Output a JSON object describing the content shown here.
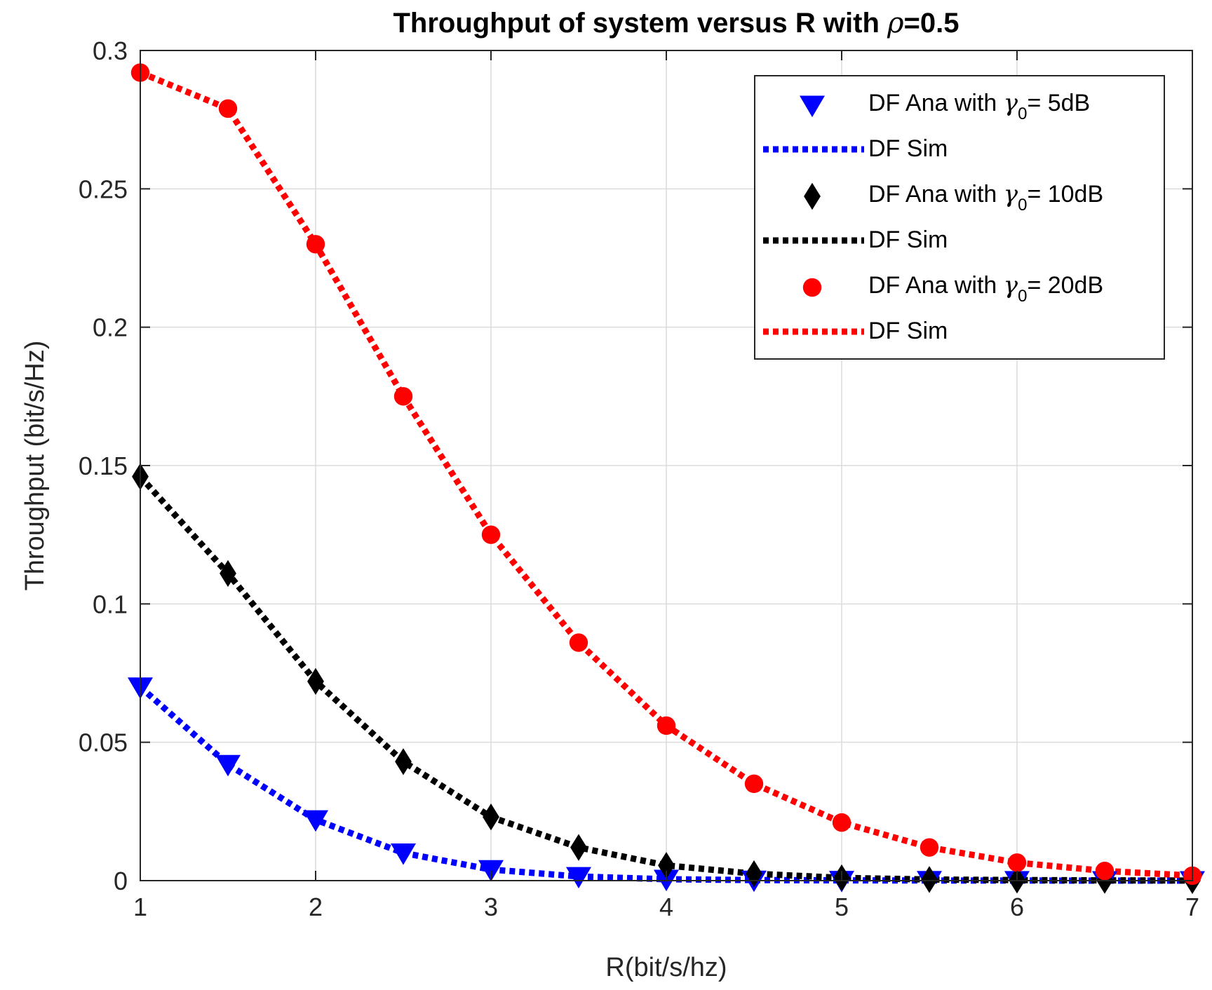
{
  "chart_data": {
    "type": "line",
    "title_prefix": "Throughput of system versus R with ",
    "title_symbol": "ρ",
    "title_suffix": "=0.5",
    "xlabel": "R(bit/s/hz)",
    "ylabel": "Throughput (bit/s/Hz)",
    "xlim": [
      1,
      7
    ],
    "ylim": [
      0,
      0.3
    ],
    "xticks": [
      1,
      2,
      3,
      4,
      5,
      6,
      7
    ],
    "xtick_labels": [
      "1",
      "2",
      "3",
      "4",
      "5",
      "6",
      "7"
    ],
    "yticks": [
      0,
      0.05,
      0.1,
      0.15,
      0.2,
      0.25,
      0.3
    ],
    "ytick_labels": [
      "0",
      "0.05",
      "0.1",
      "0.15",
      "0.2",
      "0.25",
      "0.3"
    ],
    "grid": true,
    "legend_position": "top-right",
    "x": [
      1,
      1.5,
      2,
      2.5,
      3,
      3.5,
      4,
      4.5,
      5,
      5.5,
      6,
      6.5,
      7
    ],
    "series": [
      {
        "name": "DF Ana with γ0= 5dB",
        "legend_prefix": "DF Ana with ",
        "legend_symbol": "γ",
        "legend_sub": "0",
        "legend_suffix": "= 5dB",
        "style": "marker",
        "marker": "triangle-down",
        "color": "#0000ff",
        "values": [
          0.07,
          0.042,
          0.022,
          0.01,
          0.004,
          0.0015,
          0.0005,
          0.0002,
          0.0001,
          5e-05,
          2e-05,
          1e-05,
          0.0
        ]
      },
      {
        "name": "DF Sim",
        "legend_prefix": "DF Sim",
        "style": "dotted-line",
        "color": "#0000ff",
        "values": [
          0.07,
          0.042,
          0.022,
          0.01,
          0.004,
          0.0015,
          0.0005,
          0.0002,
          0.0001,
          5e-05,
          2e-05,
          1e-05,
          0.0
        ]
      },
      {
        "name": "DF Ana with γ0= 10dB",
        "legend_prefix": "DF Ana with ",
        "legend_symbol": "γ",
        "legend_sub": "0",
        "legend_suffix": "= 10dB",
        "style": "marker",
        "marker": "diamond",
        "color": "#000000",
        "values": [
          0.146,
          0.111,
          0.072,
          0.043,
          0.023,
          0.012,
          0.0055,
          0.0025,
          0.001,
          0.0004,
          0.0002,
          0.0001,
          3e-05
        ]
      },
      {
        "name": "DF Sim",
        "legend_prefix": "DF Sim",
        "style": "dotted-line",
        "color": "#000000",
        "values": [
          0.146,
          0.111,
          0.072,
          0.043,
          0.023,
          0.012,
          0.0055,
          0.0025,
          0.001,
          0.0004,
          0.0002,
          0.0001,
          3e-05
        ]
      },
      {
        "name": "DF Ana with γ0= 20dB",
        "legend_prefix": "DF Ana with ",
        "legend_symbol": "γ",
        "legend_sub": "0",
        "legend_suffix": "= 20dB",
        "style": "marker",
        "marker": "circle",
        "color": "#ff0000",
        "values": [
          0.292,
          0.279,
          0.23,
          0.175,
          0.125,
          0.086,
          0.056,
          0.035,
          0.021,
          0.012,
          0.0065,
          0.0035,
          0.0018
        ]
      },
      {
        "name": "DF Sim",
        "legend_prefix": "DF Sim",
        "style": "dotted-line",
        "color": "#ff0000",
        "values": [
          0.292,
          0.279,
          0.23,
          0.175,
          0.125,
          0.086,
          0.056,
          0.035,
          0.021,
          0.012,
          0.0065,
          0.0035,
          0.0018
        ]
      }
    ]
  }
}
